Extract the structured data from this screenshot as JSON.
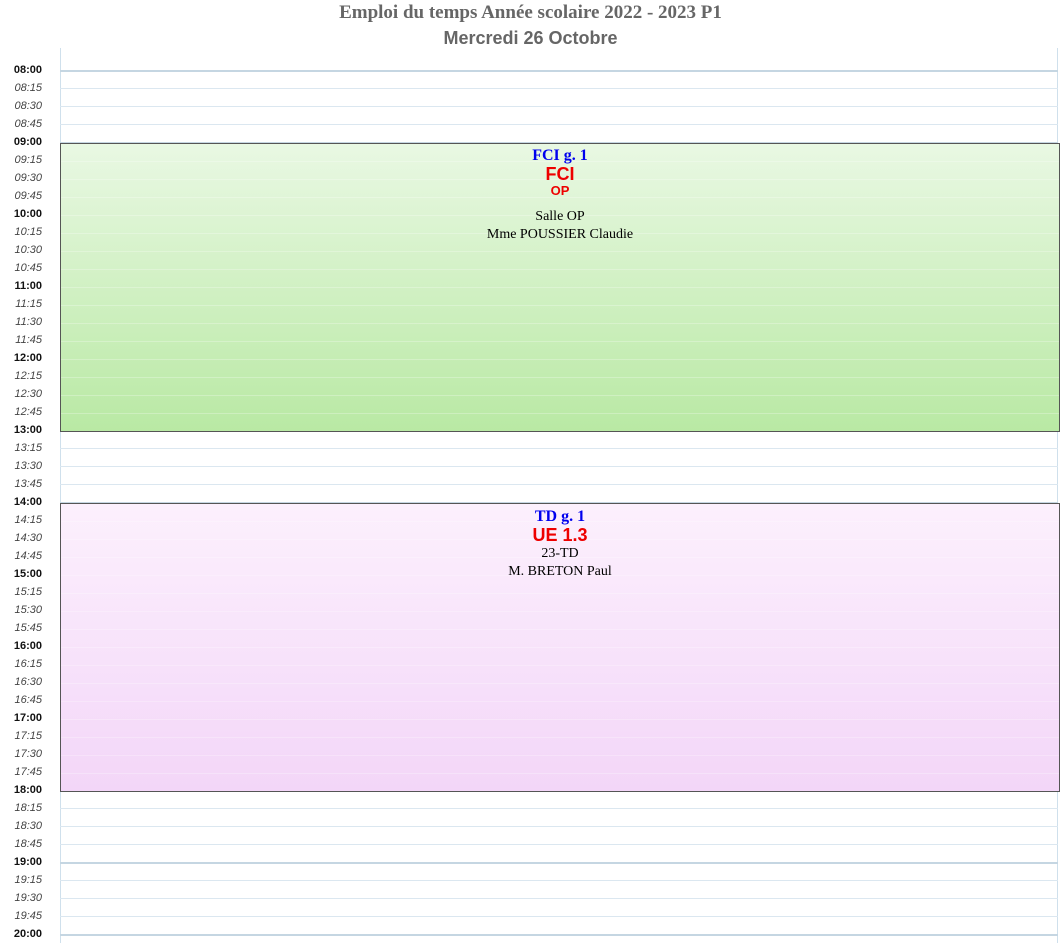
{
  "header": {
    "title": "Emploi du temps Année scolaire 2022 - 2023 P1",
    "subtitle": "Mercredi 26 Octobre"
  },
  "times": [
    {
      "label": "08:00",
      "kind": "hour"
    },
    {
      "label": "08:15",
      "kind": "quarter"
    },
    {
      "label": "08:30",
      "kind": "quarter"
    },
    {
      "label": "08:45",
      "kind": "quarter"
    },
    {
      "label": "09:00",
      "kind": "hour"
    },
    {
      "label": "09:15",
      "kind": "quarter"
    },
    {
      "label": "09:30",
      "kind": "quarter"
    },
    {
      "label": "09:45",
      "kind": "quarter"
    },
    {
      "label": "10:00",
      "kind": "hour"
    },
    {
      "label": "10:15",
      "kind": "quarter"
    },
    {
      "label": "10:30",
      "kind": "quarter"
    },
    {
      "label": "10:45",
      "kind": "quarter"
    },
    {
      "label": "11:00",
      "kind": "hour"
    },
    {
      "label": "11:15",
      "kind": "quarter"
    },
    {
      "label": "11:30",
      "kind": "quarter"
    },
    {
      "label": "11:45",
      "kind": "quarter"
    },
    {
      "label": "12:00",
      "kind": "hour"
    },
    {
      "label": "12:15",
      "kind": "quarter"
    },
    {
      "label": "12:30",
      "kind": "quarter"
    },
    {
      "label": "12:45",
      "kind": "quarter"
    },
    {
      "label": "13:00",
      "kind": "hour"
    },
    {
      "label": "13:15",
      "kind": "quarter"
    },
    {
      "label": "13:30",
      "kind": "quarter"
    },
    {
      "label": "13:45",
      "kind": "quarter"
    },
    {
      "label": "14:00",
      "kind": "hour"
    },
    {
      "label": "14:15",
      "kind": "quarter"
    },
    {
      "label": "14:30",
      "kind": "quarter"
    },
    {
      "label": "14:45",
      "kind": "quarter"
    },
    {
      "label": "15:00",
      "kind": "hour"
    },
    {
      "label": "15:15",
      "kind": "quarter"
    },
    {
      "label": "15:30",
      "kind": "quarter"
    },
    {
      "label": "15:45",
      "kind": "quarter"
    },
    {
      "label": "16:00",
      "kind": "hour"
    },
    {
      "label": "16:15",
      "kind": "quarter"
    },
    {
      "label": "16:30",
      "kind": "quarter"
    },
    {
      "label": "16:45",
      "kind": "quarter"
    },
    {
      "label": "17:00",
      "kind": "hour"
    },
    {
      "label": "17:15",
      "kind": "quarter"
    },
    {
      "label": "17:30",
      "kind": "quarter"
    },
    {
      "label": "17:45",
      "kind": "quarter"
    },
    {
      "label": "18:00",
      "kind": "hour"
    },
    {
      "label": "18:15",
      "kind": "quarter"
    },
    {
      "label": "18:30",
      "kind": "quarter"
    },
    {
      "label": "18:45",
      "kind": "quarter"
    },
    {
      "label": "19:00",
      "kind": "hour"
    },
    {
      "label": "19:15",
      "kind": "quarter"
    },
    {
      "label": "19:30",
      "kind": "quarter"
    },
    {
      "label": "19:45",
      "kind": "quarter"
    },
    {
      "label": "20:00",
      "kind": "hour"
    }
  ],
  "events": [
    {
      "start": "09:00",
      "end": "13:00",
      "group": "FCI g. 1",
      "subject": "FCI",
      "detail": "OP",
      "room": "Salle OP",
      "teacher": "Mme POUSSIER Claudie",
      "color_top": "#e9f8e3",
      "color_bottom": "#b9e9a4"
    },
    {
      "start": "14:00",
      "end": "18:00",
      "group": "TD g. 1",
      "subject": "UE 1.3",
      "room": "23-TD",
      "teacher": "M. BRETON Paul",
      "color_top": "#fcf0fd",
      "color_bottom": "#f3d6f8"
    }
  ],
  "colors": {
    "group_text": "#0000ee",
    "subject_text": "#ee0000",
    "header_text": "#666666"
  }
}
